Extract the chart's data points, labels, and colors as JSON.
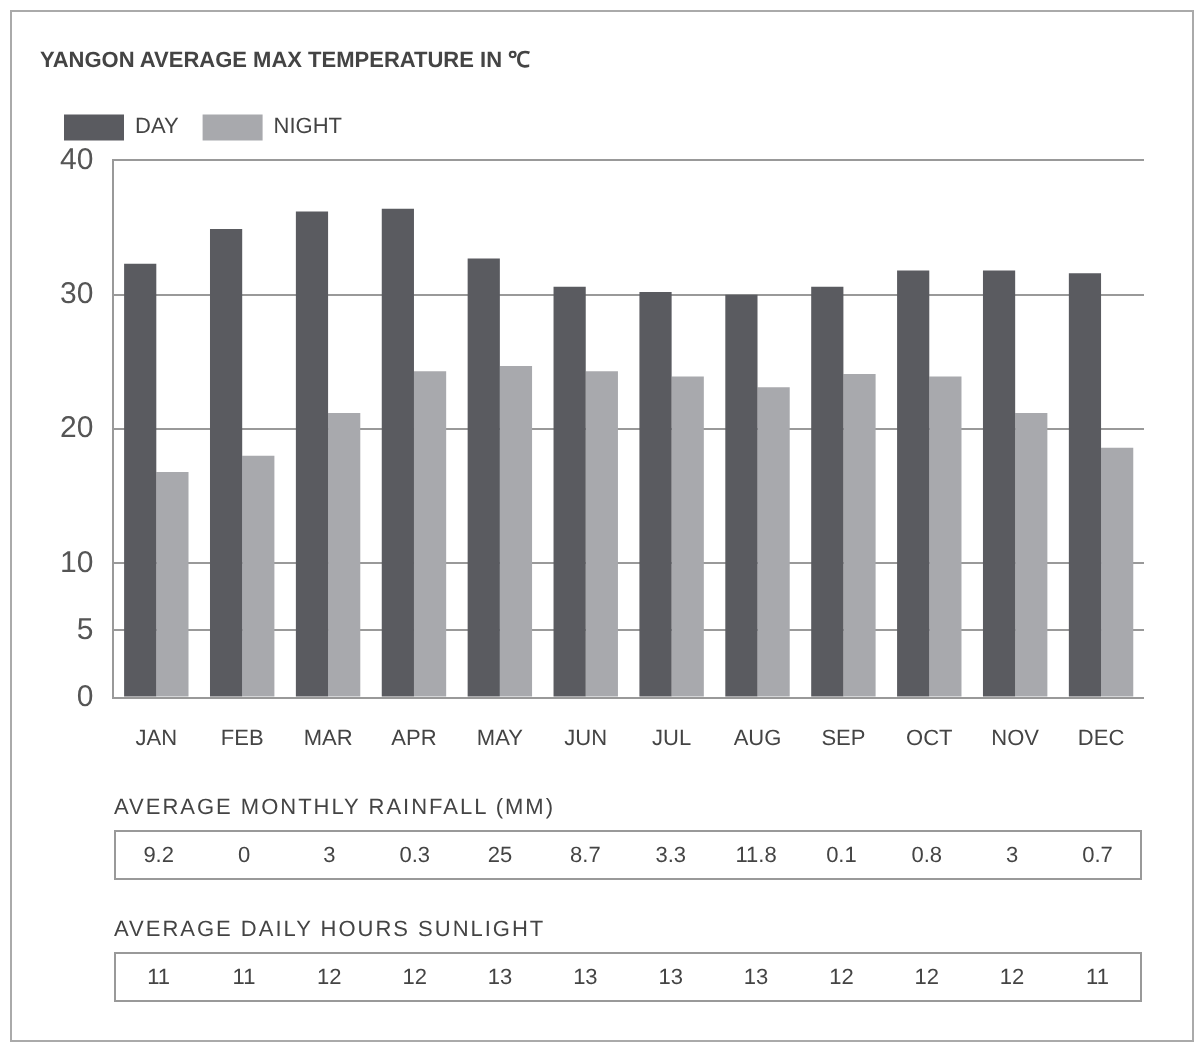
{
  "chart_data": [
    {
      "type": "bar",
      "title": "YANGON AVERAGE MAX TEMPERATURE IN ℃",
      "categories": [
        "JAN",
        "FEB",
        "MAR",
        "APR",
        "MAY",
        "JUN",
        "JUL",
        "AUG",
        "SEP",
        "OCT",
        "NOV",
        "DEC"
      ],
      "series": [
        {
          "name": "DAY",
          "color": "#5a5b60",
          "values": [
            32.3,
            34.9,
            36.2,
            36.4,
            32.7,
            30.6,
            30.2,
            30.0,
            30.6,
            31.8,
            31.8,
            31.6
          ]
        },
        {
          "name": "NIGHT",
          "color": "#a8a9ad",
          "values": [
            16.8,
            18.0,
            21.2,
            24.3,
            24.7,
            24.3,
            23.9,
            23.1,
            24.1,
            23.9,
            21.2,
            18.6
          ]
        }
      ],
      "ylim": [
        0,
        40
      ],
      "yticks": [
        0,
        5,
        10,
        20,
        30,
        40
      ],
      "grid": "y",
      "legend": "top left"
    },
    {
      "type": "other",
      "title": "AVERAGE MONTHLY RAINFALL (MM)",
      "categories": [
        null,
        null,
        null,
        null,
        null,
        null,
        null,
        null,
        null,
        null,
        null,
        null
      ],
      "values": [
        9.2,
        0,
        3,
        0.3,
        25,
        8.7,
        3.3,
        11.8,
        0.1,
        0.8,
        3,
        0.7
      ],
      "data_labels": true
    },
    {
      "type": "other",
      "title": "AVERAGE DAILY HOURS SUNLIGHT",
      "categories": [
        null,
        null,
        null,
        null,
        null,
        null,
        null,
        null,
        null,
        null,
        null,
        null
      ],
      "values": [
        11,
        11,
        12,
        12,
        13,
        13,
        13,
        13,
        12,
        12,
        12,
        11
      ],
      "data_labels": true
    }
  ]
}
